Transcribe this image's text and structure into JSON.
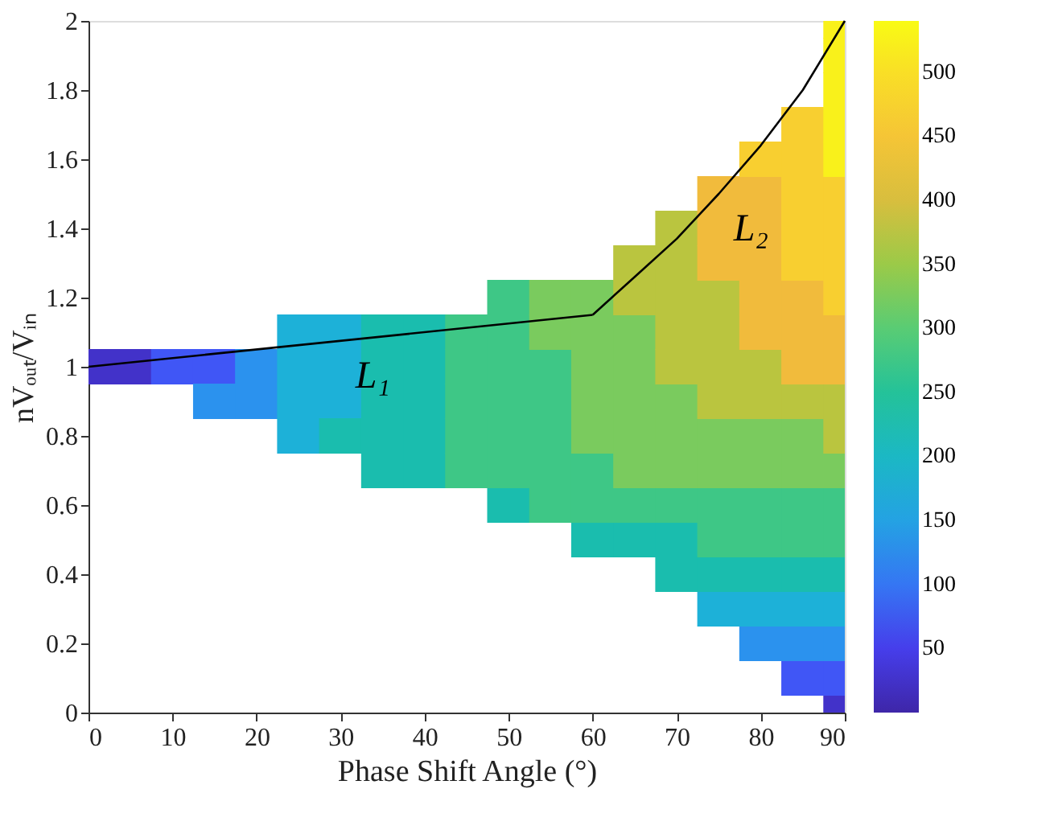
{
  "chart_data": {
    "type": "scatter",
    "xlabel": "Phase Shift Angle (°)",
    "ylabel": "nVₒᵤₜ/Vᵢₙ",
    "xlim": [
      0,
      90
    ],
    "xticks": [
      0,
      10,
      20,
      30,
      40,
      50,
      60,
      70,
      80,
      90
    ],
    "ylim": [
      0,
      2
    ],
    "yticks": [
      0,
      0.2,
      0.4,
      0.6,
      0.8,
      1,
      1.2,
      1.4,
      1.6,
      1.8,
      2
    ],
    "clim": [
      0,
      540
    ],
    "cticks": [
      50,
      100,
      150,
      200,
      250,
      300,
      350,
      400,
      450,
      500
    ],
    "colors": [
      "#3e26a8",
      "#4743f8",
      "#2c8ff0",
      "#1cb4d6",
      "#19c0a0",
      "#59cc74",
      "#a8c93f",
      "#f0b93d",
      "#f9d12f",
      "#f9fb14"
    ],
    "marker": "square",
    "series": [
      {
        "x": [
          0,
          5,
          90
        ],
        "values": [
          1,
          1,
          0
        ],
        "cvalues": [
          25,
          25,
          25
        ]
      },
      {
        "x": [
          10,
          15,
          85,
          90
        ],
        "values": [
          1,
          1,
          0.1,
          0.1
        ],
        "cvalues": [
          75,
          75,
          75,
          75
        ]
      },
      {
        "x": [
          20,
          15,
          20,
          80,
          85,
          90
        ],
        "values": [
          1,
          0.9,
          0.9,
          0.2,
          0.2,
          0.2
        ],
        "cvalues": [
          125,
          125,
          125,
          125,
          125,
          125
        ]
      },
      {
        "x": [
          25,
          30,
          25,
          30,
          25,
          30,
          25,
          75,
          80,
          85,
          90
        ],
        "values": [
          1.1,
          1.1,
          1,
          1,
          0.9,
          0.9,
          0.8,
          0.3,
          0.3,
          0.3,
          0.3
        ],
        "cvalues": [
          175,
          175,
          175,
          175,
          175,
          175,
          175,
          175,
          175,
          175,
          175
        ]
      },
      {
        "x": [
          35,
          40,
          35,
          40,
          35,
          40,
          30,
          35,
          40,
          35,
          40,
          50,
          60,
          65,
          70,
          70,
          75,
          80,
          85,
          90
        ],
        "values": [
          1.1,
          1.1,
          1,
          1,
          0.9,
          0.9,
          0.8,
          0.8,
          0.8,
          0.7,
          0.7,
          0.6,
          0.5,
          0.5,
          0.5,
          0.4,
          0.4,
          0.4,
          0.4,
          0.4
        ],
        "cvalues": [
          225,
          225,
          225,
          225,
          225,
          225,
          225,
          225,
          225,
          225,
          225,
          225,
          225,
          225,
          225,
          225,
          225,
          225,
          225,
          225
        ]
      },
      {
        "x": [
          50,
          45,
          50,
          45,
          50,
          55,
          45,
          50,
          55,
          45,
          50,
          55,
          45,
          50,
          55,
          60,
          55,
          60,
          65,
          70,
          75,
          80,
          85,
          90,
          75,
          80,
          85,
          90
        ],
        "values": [
          1.2,
          1.1,
          1.1,
          1,
          1,
          1,
          0.9,
          0.9,
          0.9,
          0.8,
          0.8,
          0.8,
          0.7,
          0.7,
          0.7,
          0.7,
          0.6,
          0.6,
          0.6,
          0.6,
          0.6,
          0.6,
          0.6,
          0.6,
          0.5,
          0.5,
          0.5,
          0.5
        ],
        "cvalues": [
          275,
          275,
          275,
          275,
          275,
          275,
          275,
          275,
          275,
          275,
          275,
          275,
          275,
          275,
          275,
          275,
          275,
          275,
          275,
          275,
          275,
          275,
          275,
          275,
          275,
          275,
          275,
          275
        ]
      },
      {
        "x": [
          55,
          60,
          55,
          60,
          65,
          60,
          65,
          60,
          65,
          70,
          60,
          65,
          70,
          75,
          80,
          85,
          65,
          70,
          75,
          80,
          85,
          90
        ],
        "values": [
          1.2,
          1.2,
          1.1,
          1.1,
          1.1,
          1,
          1,
          0.9,
          0.9,
          0.9,
          0.8,
          0.8,
          0.8,
          0.8,
          0.8,
          0.8,
          0.7,
          0.7,
          0.7,
          0.7,
          0.7,
          0.7
        ],
        "cvalues": [
          325,
          325,
          325,
          325,
          325,
          325,
          325,
          325,
          325,
          325,
          325,
          325,
          325,
          325,
          325,
          325,
          325,
          325,
          325,
          325,
          325,
          325
        ]
      },
      {
        "x": [
          70,
          65,
          70,
          65,
          70,
          75,
          70,
          75,
          70,
          75,
          80,
          75,
          80,
          85,
          90,
          90
        ],
        "values": [
          1.4,
          1.3,
          1.3,
          1.2,
          1.2,
          1.2,
          1.1,
          1.1,
          1,
          1,
          1,
          0.9,
          0.9,
          0.9,
          0.9,
          0.8
        ],
        "cvalues": [
          375,
          375,
          375,
          375,
          375,
          375,
          375,
          375,
          375,
          375,
          375,
          375,
          375,
          375,
          375,
          375
        ]
      },
      {
        "x": [
          75,
          80,
          75,
          80,
          75,
          80,
          80,
          85,
          80,
          85,
          90,
          85,
          90
        ],
        "values": [
          1.5,
          1.5,
          1.4,
          1.4,
          1.3,
          1.3,
          1.2,
          1.2,
          1.1,
          1.1,
          1.1,
          1,
          1
        ],
        "cvalues": [
          425,
          425,
          425,
          425,
          425,
          425,
          425,
          425,
          425,
          425,
          425,
          425,
          425
        ]
      },
      {
        "x": [
          85,
          80,
          85,
          85,
          90,
          85,
          90,
          85,
          90,
          90
        ],
        "values": [
          1.7,
          1.6,
          1.6,
          1.5,
          1.5,
          1.4,
          1.4,
          1.3,
          1.3,
          1.2
        ],
        "cvalues": [
          475,
          475,
          475,
          475,
          475,
          475,
          475,
          475,
          475,
          475
        ]
      },
      {
        "x": [
          90,
          90,
          90,
          90,
          90
        ],
        "values": [
          2,
          1.9,
          1.8,
          1.7,
          1.6
        ],
        "cvalues": [
          525,
          525,
          525,
          525,
          525
        ]
      },
      {
        "type": "line",
        "name": "L₁",
        "color": "#000000",
        "marker": "none",
        "x": [
          0,
          60
        ],
        "values": [
          1,
          1.15
        ]
      },
      {
        "type": "line",
        "name": "L₂",
        "color": "#000000",
        "marker": "none",
        "x": [
          60,
          65,
          70,
          75,
          80,
          85,
          90
        ],
        "values": [
          1.15,
          1.26,
          1.37,
          1.5,
          1.64,
          1.8,
          2
        ]
      }
    ],
    "grid": false
  }
}
